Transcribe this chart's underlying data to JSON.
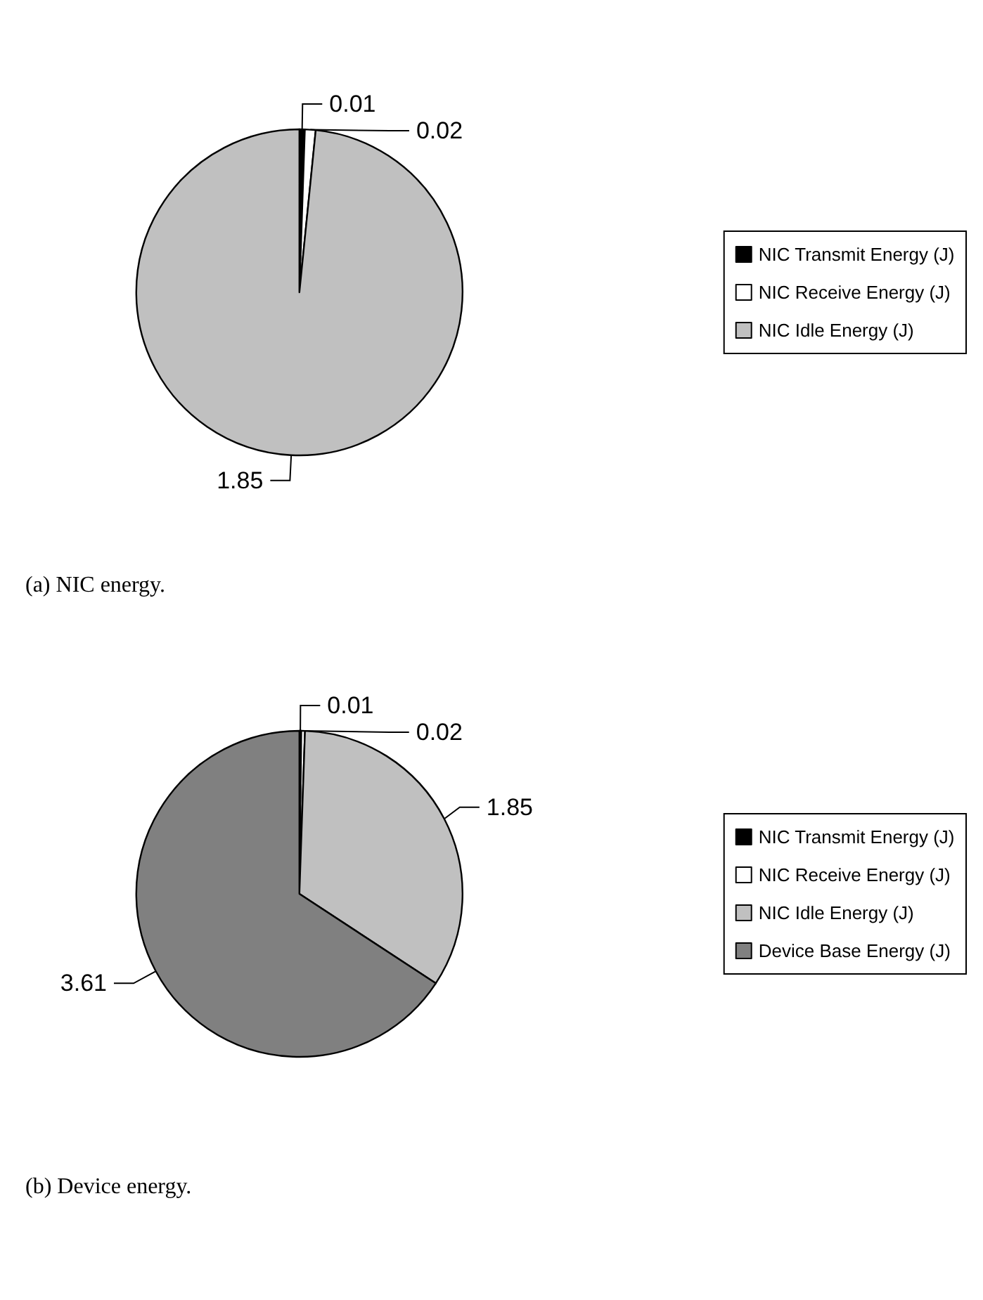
{
  "chart_data": [
    {
      "type": "pie",
      "categories": [
        "NIC Transmit Energy (J)",
        "NIC Receive Energy (J)",
        "NIC Idle Energy (J)"
      ],
      "values": [
        0.01,
        0.02,
        1.85
      ],
      "colors": [
        "#000000",
        "#ffffff",
        "#c0c0c0"
      ],
      "data_labels": true,
      "legend": "right",
      "annotations": [
        "(a) NIC energy."
      ]
    },
    {
      "type": "pie",
      "categories": [
        "NIC Transmit Energy (J)",
        "NIC Receive Energy (J)",
        "NIC Idle Energy (J)",
        "Device Base Energy (J)"
      ],
      "values": [
        0.01,
        0.02,
        1.85,
        3.61
      ],
      "colors": [
        "#000000",
        "#ffffff",
        "#c0c0c0",
        "#808080"
      ],
      "data_labels": true,
      "legend": "right",
      "annotations": [
        "(b) Device energy."
      ]
    }
  ]
}
